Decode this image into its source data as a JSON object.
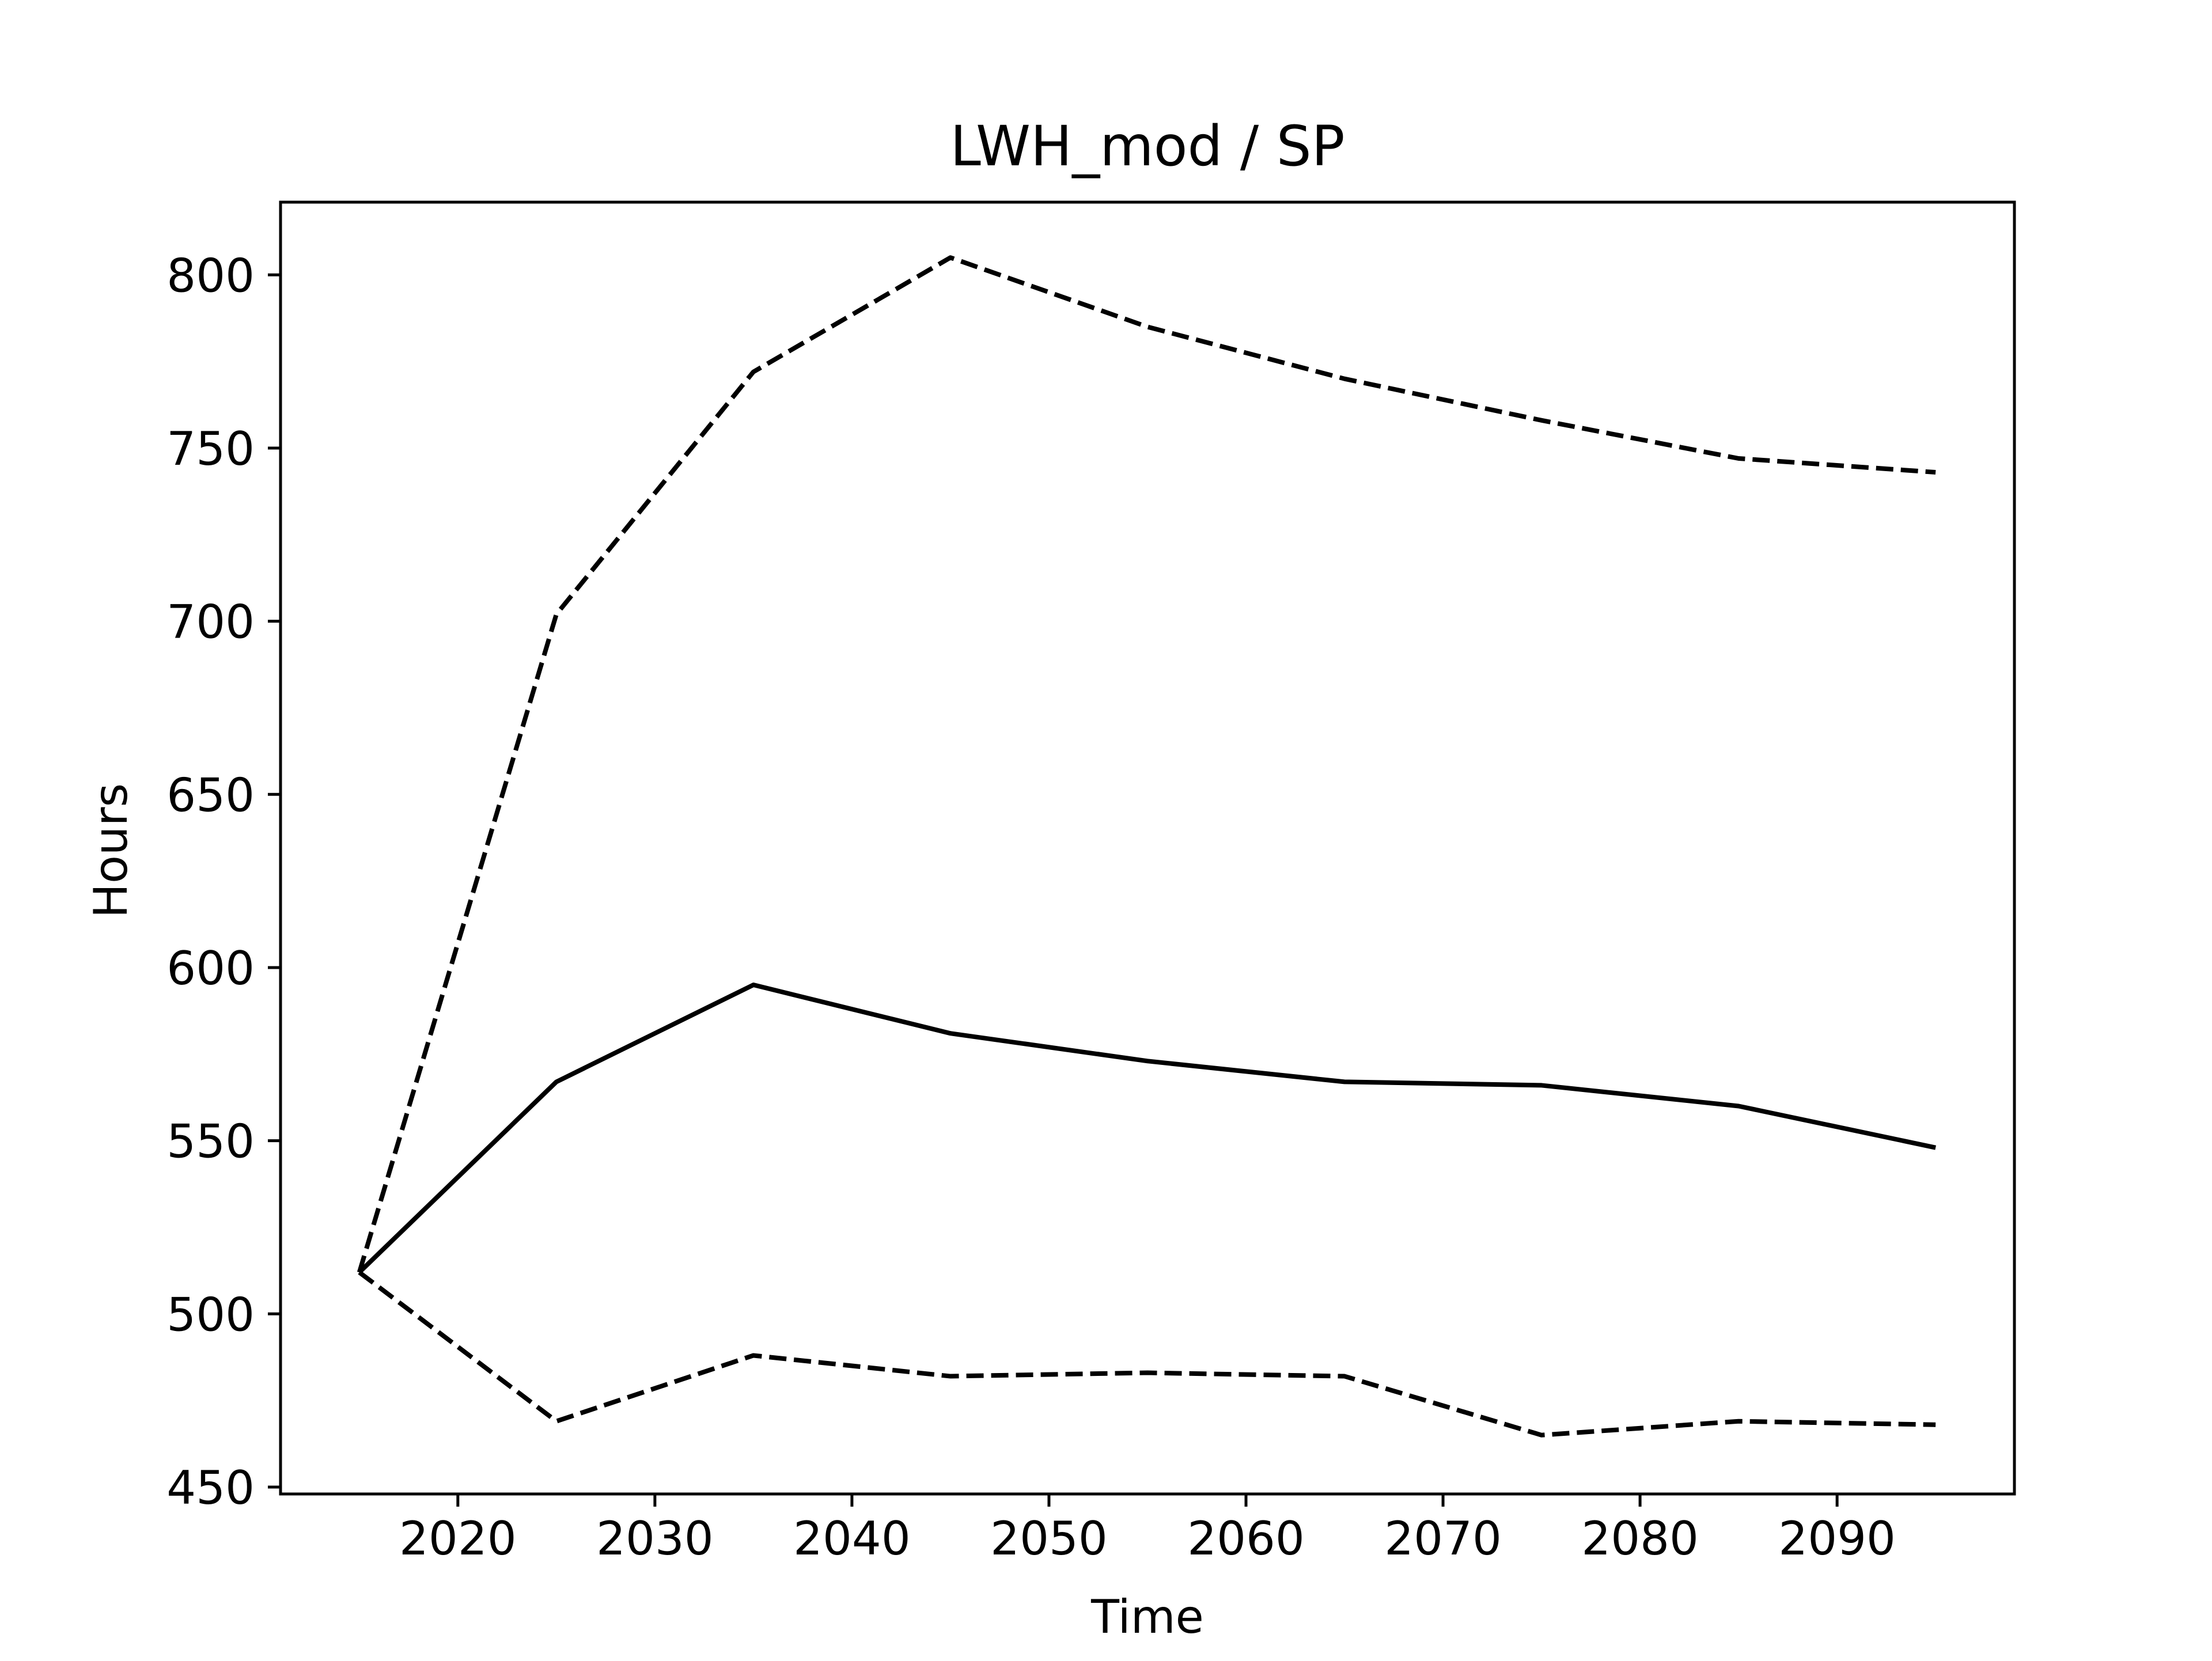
{
  "chart_data": {
    "type": "line",
    "title": "LWH_mod / SP",
    "xlabel": "Time",
    "ylabel": "Hours",
    "x": [
      2015,
      2025,
      2035,
      2045,
      2055,
      2065,
      2075,
      2085,
      2095
    ],
    "xlim": [
      2011,
      2099
    ],
    "ylim": [
      448,
      821
    ],
    "xticks": [
      2020,
      2030,
      2040,
      2050,
      2060,
      2070,
      2080,
      2090
    ],
    "yticks": [
      450,
      500,
      550,
      600,
      650,
      700,
      750,
      800
    ],
    "grid": false,
    "legend": "none",
    "series": [
      {
        "style": "solid",
        "color": "#000000",
        "values": [
          512,
          567,
          595,
          581,
          573,
          567,
          566,
          560,
          548
        ]
      },
      {
        "style": "dashed",
        "color": "#000000",
        "values": [
          512,
          702,
          772,
          805,
          785,
          770,
          758,
          747,
          743
        ]
      },
      {
        "style": "dashed",
        "color": "#000000",
        "values": [
          512,
          469,
          488,
          482,
          483,
          482,
          465,
          469,
          468
        ]
      }
    ]
  }
}
